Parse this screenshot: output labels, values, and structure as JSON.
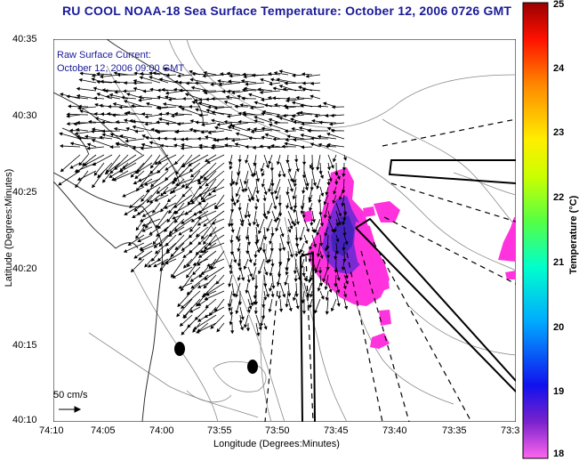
{
  "title": "RU COOL  NOAA-18  Sea Surface Temperature:  October 12, 2006 0726 GMT",
  "legend": {
    "line1": "Raw Surface Current:",
    "line2": "October 12, 2006 09:00 GMT",
    "scale_label": "50 cm/s"
  },
  "axes": {
    "xlabel": "Longitude (Degrees:Minutes)",
    "ylabel": "Latitude (Degrees:Minutes)",
    "xticks": [
      "74:10",
      "74:05",
      "74:00",
      "73:55",
      "73:50",
      "73:45",
      "73:40",
      "73:35",
      "73:3"
    ],
    "yticks": [
      "40:35",
      "40:30",
      "40:25",
      "40:20",
      "40:15",
      "40:10"
    ]
  },
  "colorbar": {
    "label": "Temperature (°C)",
    "ticks": [
      "25",
      "24",
      "23",
      "22",
      "21",
      "20",
      "19",
      "18"
    ],
    "range": [
      18,
      25
    ]
  },
  "colors": {
    "title": "#1a1a9a",
    "sst_patch": "#ff33dd",
    "sst_cold": "#5522cc"
  }
}
